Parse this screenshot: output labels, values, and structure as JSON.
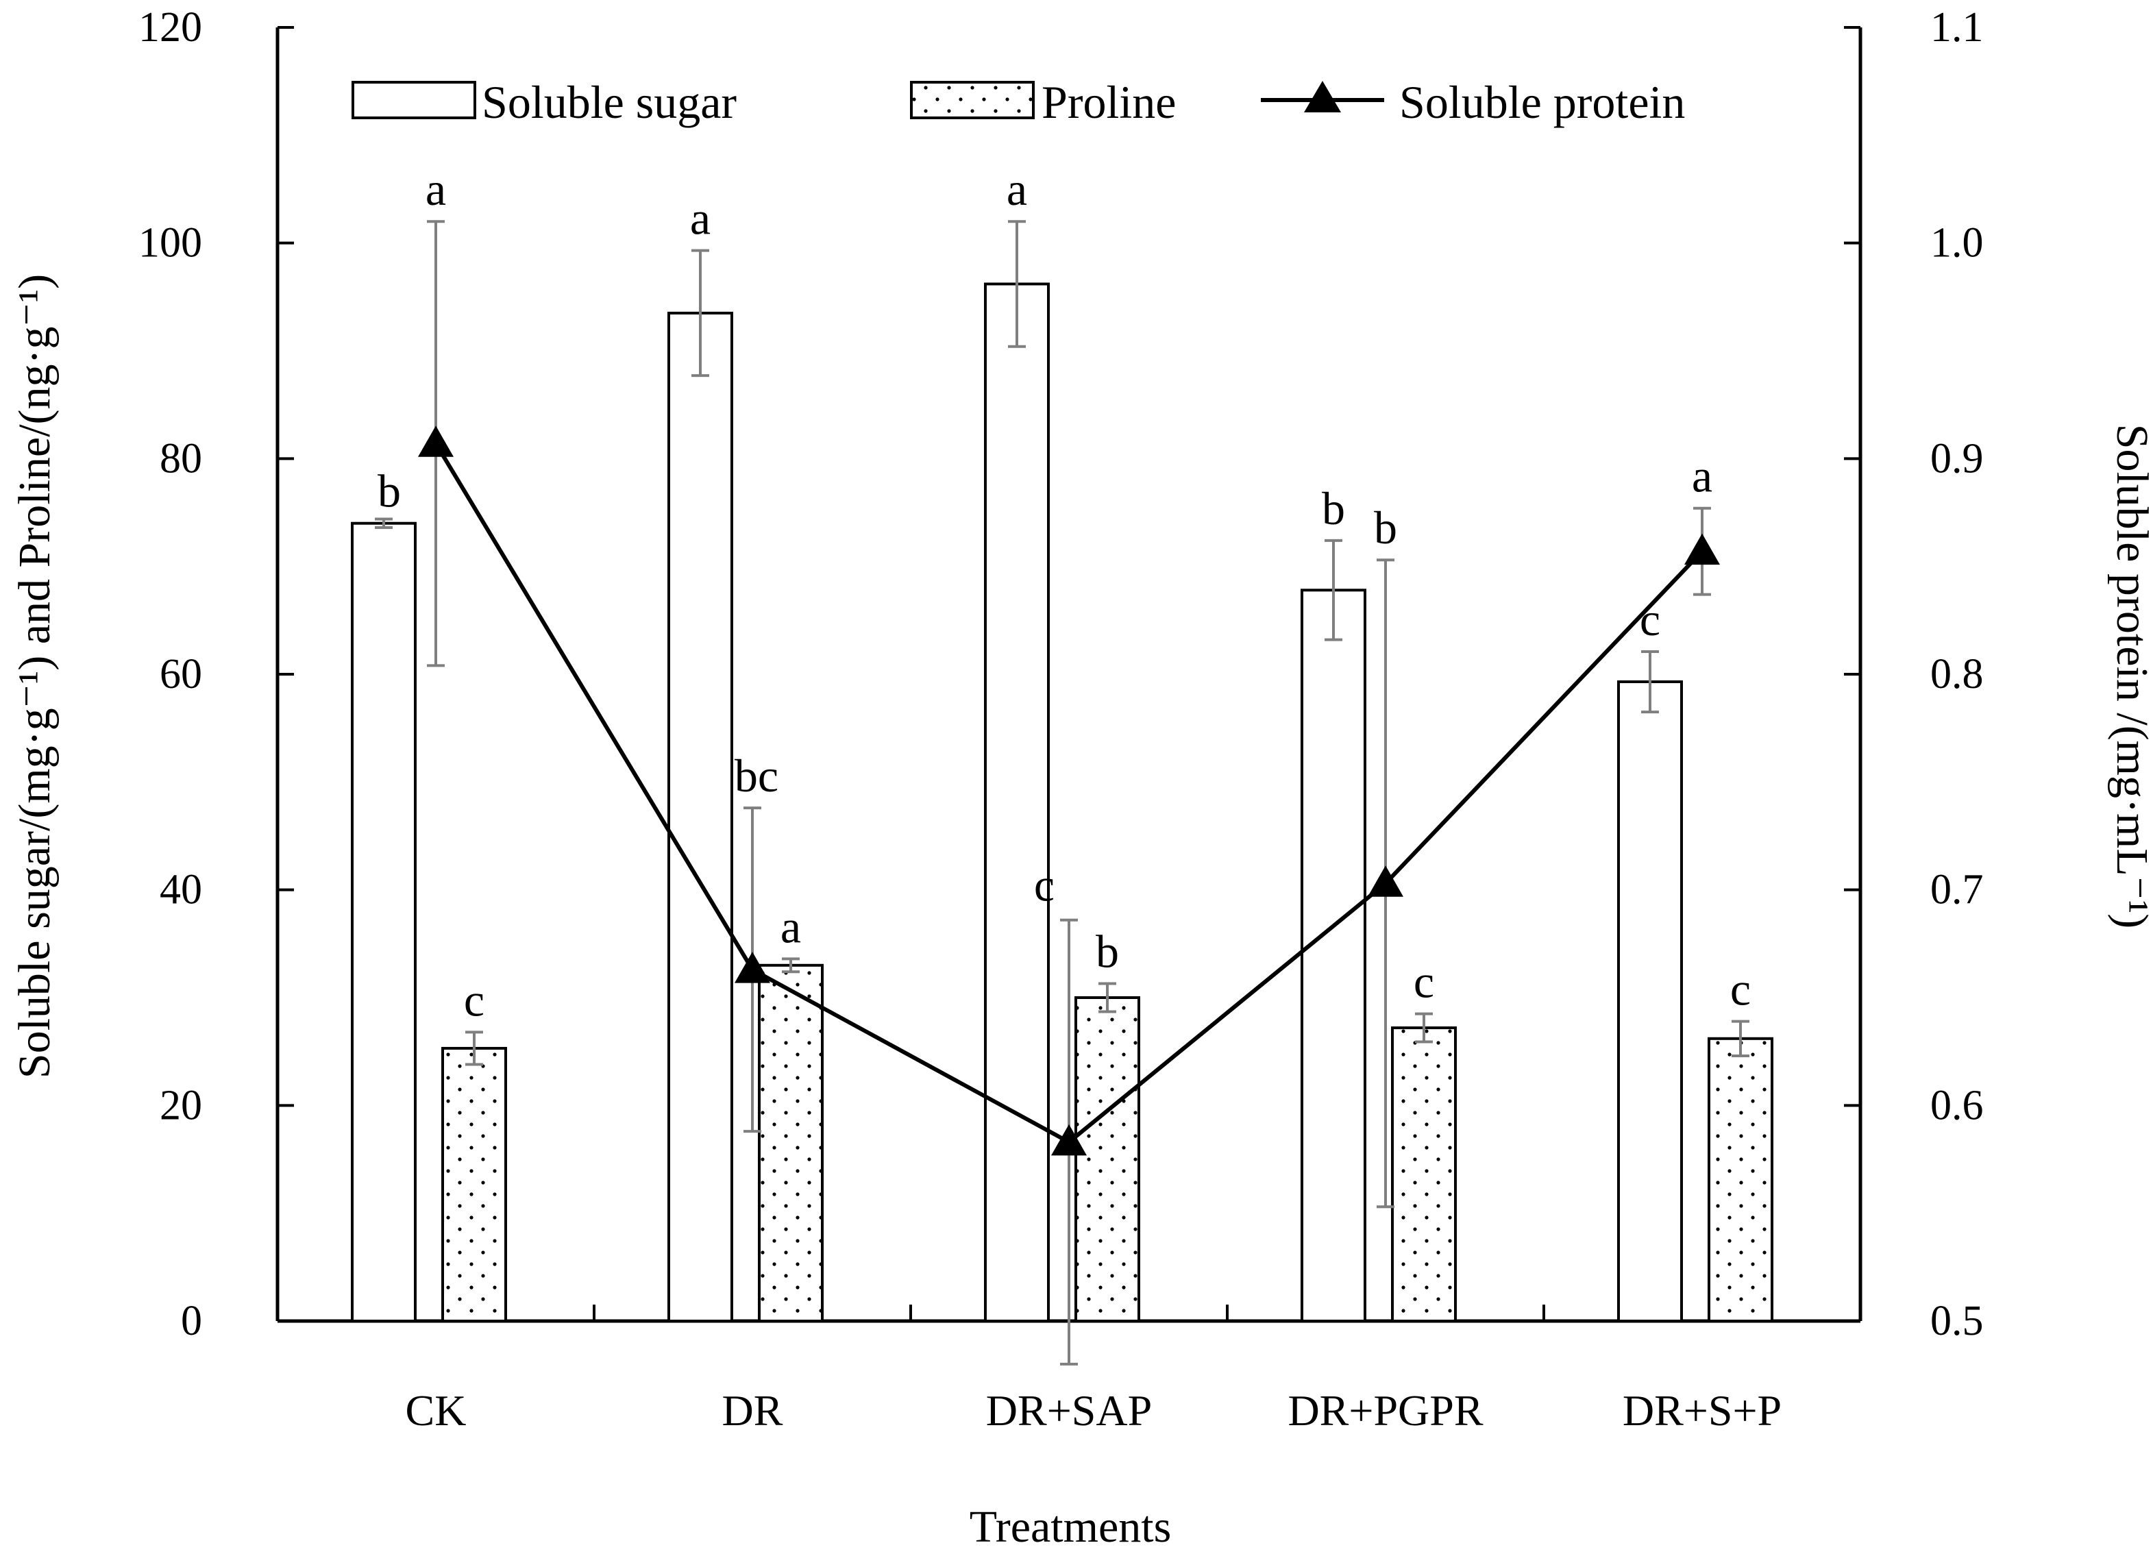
{
  "chart_data": {
    "type": "bar",
    "xlabel": "Treatments",
    "ylabel": "Soluble sugar/(mg·g⁻¹) and Proline/(ng·g⁻¹)",
    "y2label": "Soluble protein /(mg·mL⁻¹)",
    "ylim": [
      0,
      120
    ],
    "y2lim": [
      0.5,
      1.1
    ],
    "y_ticks": [
      "0",
      "20",
      "40",
      "60",
      "80",
      "100",
      "120"
    ],
    "y2_ticks": [
      "0.5",
      "0.6",
      "0.7",
      "0.8",
      "0.9",
      "1.0",
      "1.1"
    ],
    "categories": [
      "CK",
      "DR",
      "DR+SAP",
      "DR+PGPR",
      "DR+S+P"
    ],
    "legend_position": "top",
    "grid": false,
    "series": [
      {
        "name": "Soluble sugar",
        "kind": "bar",
        "pattern": "open",
        "axis": "left",
        "values": [
          74.0,
          93.5,
          96.2,
          67.8,
          59.3
        ],
        "errors": [
          0.4,
          5.8,
          5.8,
          4.6,
          2.8
        ],
        "letters": [
          "b",
          "a",
          "a",
          "b",
          "c"
        ]
      },
      {
        "name": "Proline",
        "kind": "bar",
        "pattern": "dotted",
        "axis": "left",
        "values": [
          25.3,
          33.0,
          30.0,
          27.2,
          26.2
        ],
        "errors": [
          1.5,
          0.6,
          1.3,
          1.3,
          1.6
        ],
        "letters": [
          "c",
          "a",
          "b",
          "c",
          "c"
        ]
      },
      {
        "name": "Soluble protein",
        "kind": "line",
        "marker": "triangle",
        "axis": "right",
        "values": [
          0.907,
          0.663,
          0.583,
          0.703,
          0.857
        ],
        "errors": [
          0.103,
          0.075,
          0.103,
          0.15,
          0.02
        ],
        "letters": [
          "a",
          "bc",
          "c",
          "b",
          "a"
        ]
      }
    ]
  }
}
